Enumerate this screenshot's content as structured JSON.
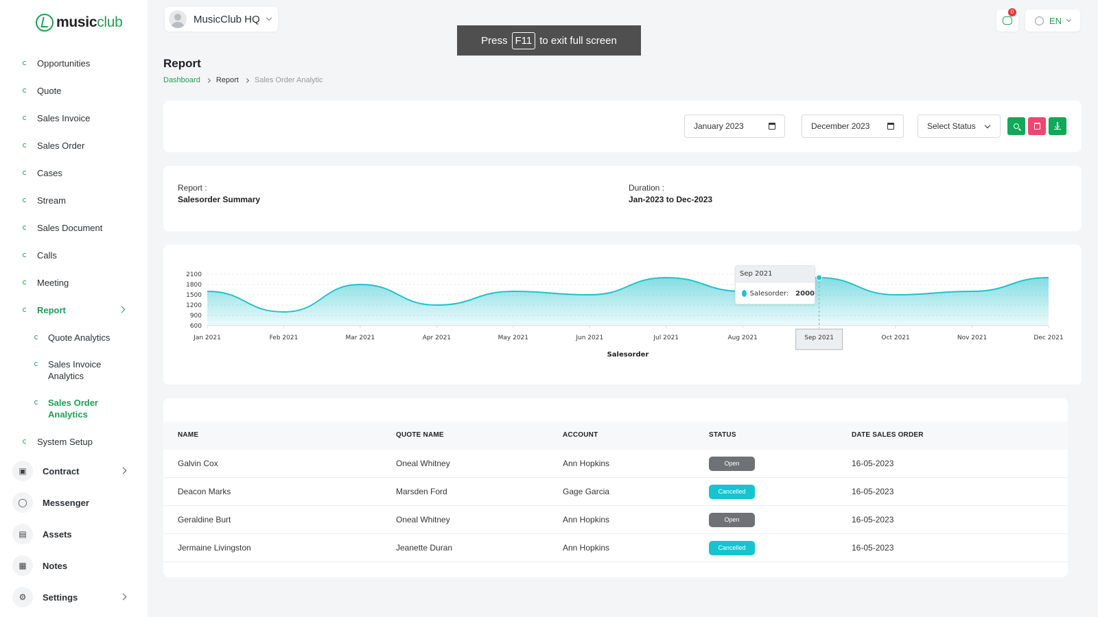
{
  "app": {
    "logo_prefix": "music",
    "logo_suffix": "club"
  },
  "workspace": {
    "name": "MusicClub HQ"
  },
  "fullscreen_banner": {
    "before": "Press",
    "key": "F11",
    "after": "to exit full screen"
  },
  "header": {
    "notification_count": "0",
    "language": "EN"
  },
  "sidebar": {
    "items": [
      {
        "label": "Opportunities"
      },
      {
        "label": "Quote"
      },
      {
        "label": "Sales Invoice"
      },
      {
        "label": "Sales Order"
      },
      {
        "label": "Cases"
      },
      {
        "label": "Stream"
      },
      {
        "label": "Sales Document"
      },
      {
        "label": "Calls"
      },
      {
        "label": "Meeting"
      },
      {
        "label": "Report"
      }
    ],
    "report_sub": [
      {
        "label": "Quote Analytics"
      },
      {
        "label": "Sales Invoice Analytics"
      },
      {
        "label": "Sales Order Analytics"
      }
    ],
    "system_setup": "System Setup",
    "icon_items": [
      {
        "label": "Contract",
        "icon": "contract-icon"
      },
      {
        "label": "Messenger",
        "icon": "messenger-icon"
      },
      {
        "label": "Assets",
        "icon": "assets-icon"
      },
      {
        "label": "Notes",
        "icon": "notes-icon"
      },
      {
        "label": "Settings",
        "icon": "gear-icon"
      }
    ]
  },
  "page": {
    "title": "Report",
    "breadcrumb": [
      "Dashboard",
      "Report",
      "Sales Order Analytic"
    ]
  },
  "filters": {
    "from_date": "January 2023",
    "to_date": "December 2023",
    "status_placeholder": "Select Status"
  },
  "summary": {
    "report_label": "Report :",
    "report_value": "Salesorder Summary",
    "duration_label": "Duration :",
    "duration_value": "Jan-2023 to Dec-2023"
  },
  "chart_data": {
    "type": "area",
    "categories": [
      "Jan 2021",
      "Feb 2021",
      "Mar 2021",
      "Apr 2021",
      "May 2021",
      "Jun 2021",
      "Jul 2021",
      "Aug 2021",
      "Sep 2021",
      "Oct 2021",
      "Nov 2021",
      "Dec 2021"
    ],
    "series": [
      {
        "name": "Salesorder",
        "values": [
          1600,
          1000,
          1800,
          1200,
          1600,
          1500,
          2000,
          1600,
          2000,
          1500,
          1600,
          2000
        ]
      }
    ],
    "xlabel": "Salesorder",
    "ylabel": "",
    "yticks": [
      600,
      900,
      1200,
      1500,
      1800,
      2100
    ],
    "ylim": [
      600,
      2100
    ],
    "color": "#1fc2cc",
    "tooltip": {
      "category": "Sep 2021",
      "series": "Salesorder:",
      "value": "2000"
    }
  },
  "table": {
    "columns": [
      "NAME",
      "QUOTE NAME",
      "ACCOUNT",
      "STATUS",
      "DATE SALES ORDER"
    ],
    "rows": [
      {
        "name": "Galvin Cox",
        "quote": "Oneal Whitney",
        "account": "Ann Hopkins",
        "status": "Open",
        "date": "16-05-2023"
      },
      {
        "name": "Deacon Marks",
        "quote": "Marsden Ford",
        "account": "Gage Garcia",
        "status": "Cancelled",
        "date": "16-05-2023"
      },
      {
        "name": "Geraldine Burt",
        "quote": "Oneal Whitney",
        "account": "Ann Hopkins",
        "status": "Open",
        "date": "16-05-2023"
      },
      {
        "name": "Jermaine Livingston",
        "quote": "Jeanette Duran",
        "account": "Ann Hopkins",
        "status": "Cancelled",
        "date": "16-05-2023"
      }
    ]
  }
}
